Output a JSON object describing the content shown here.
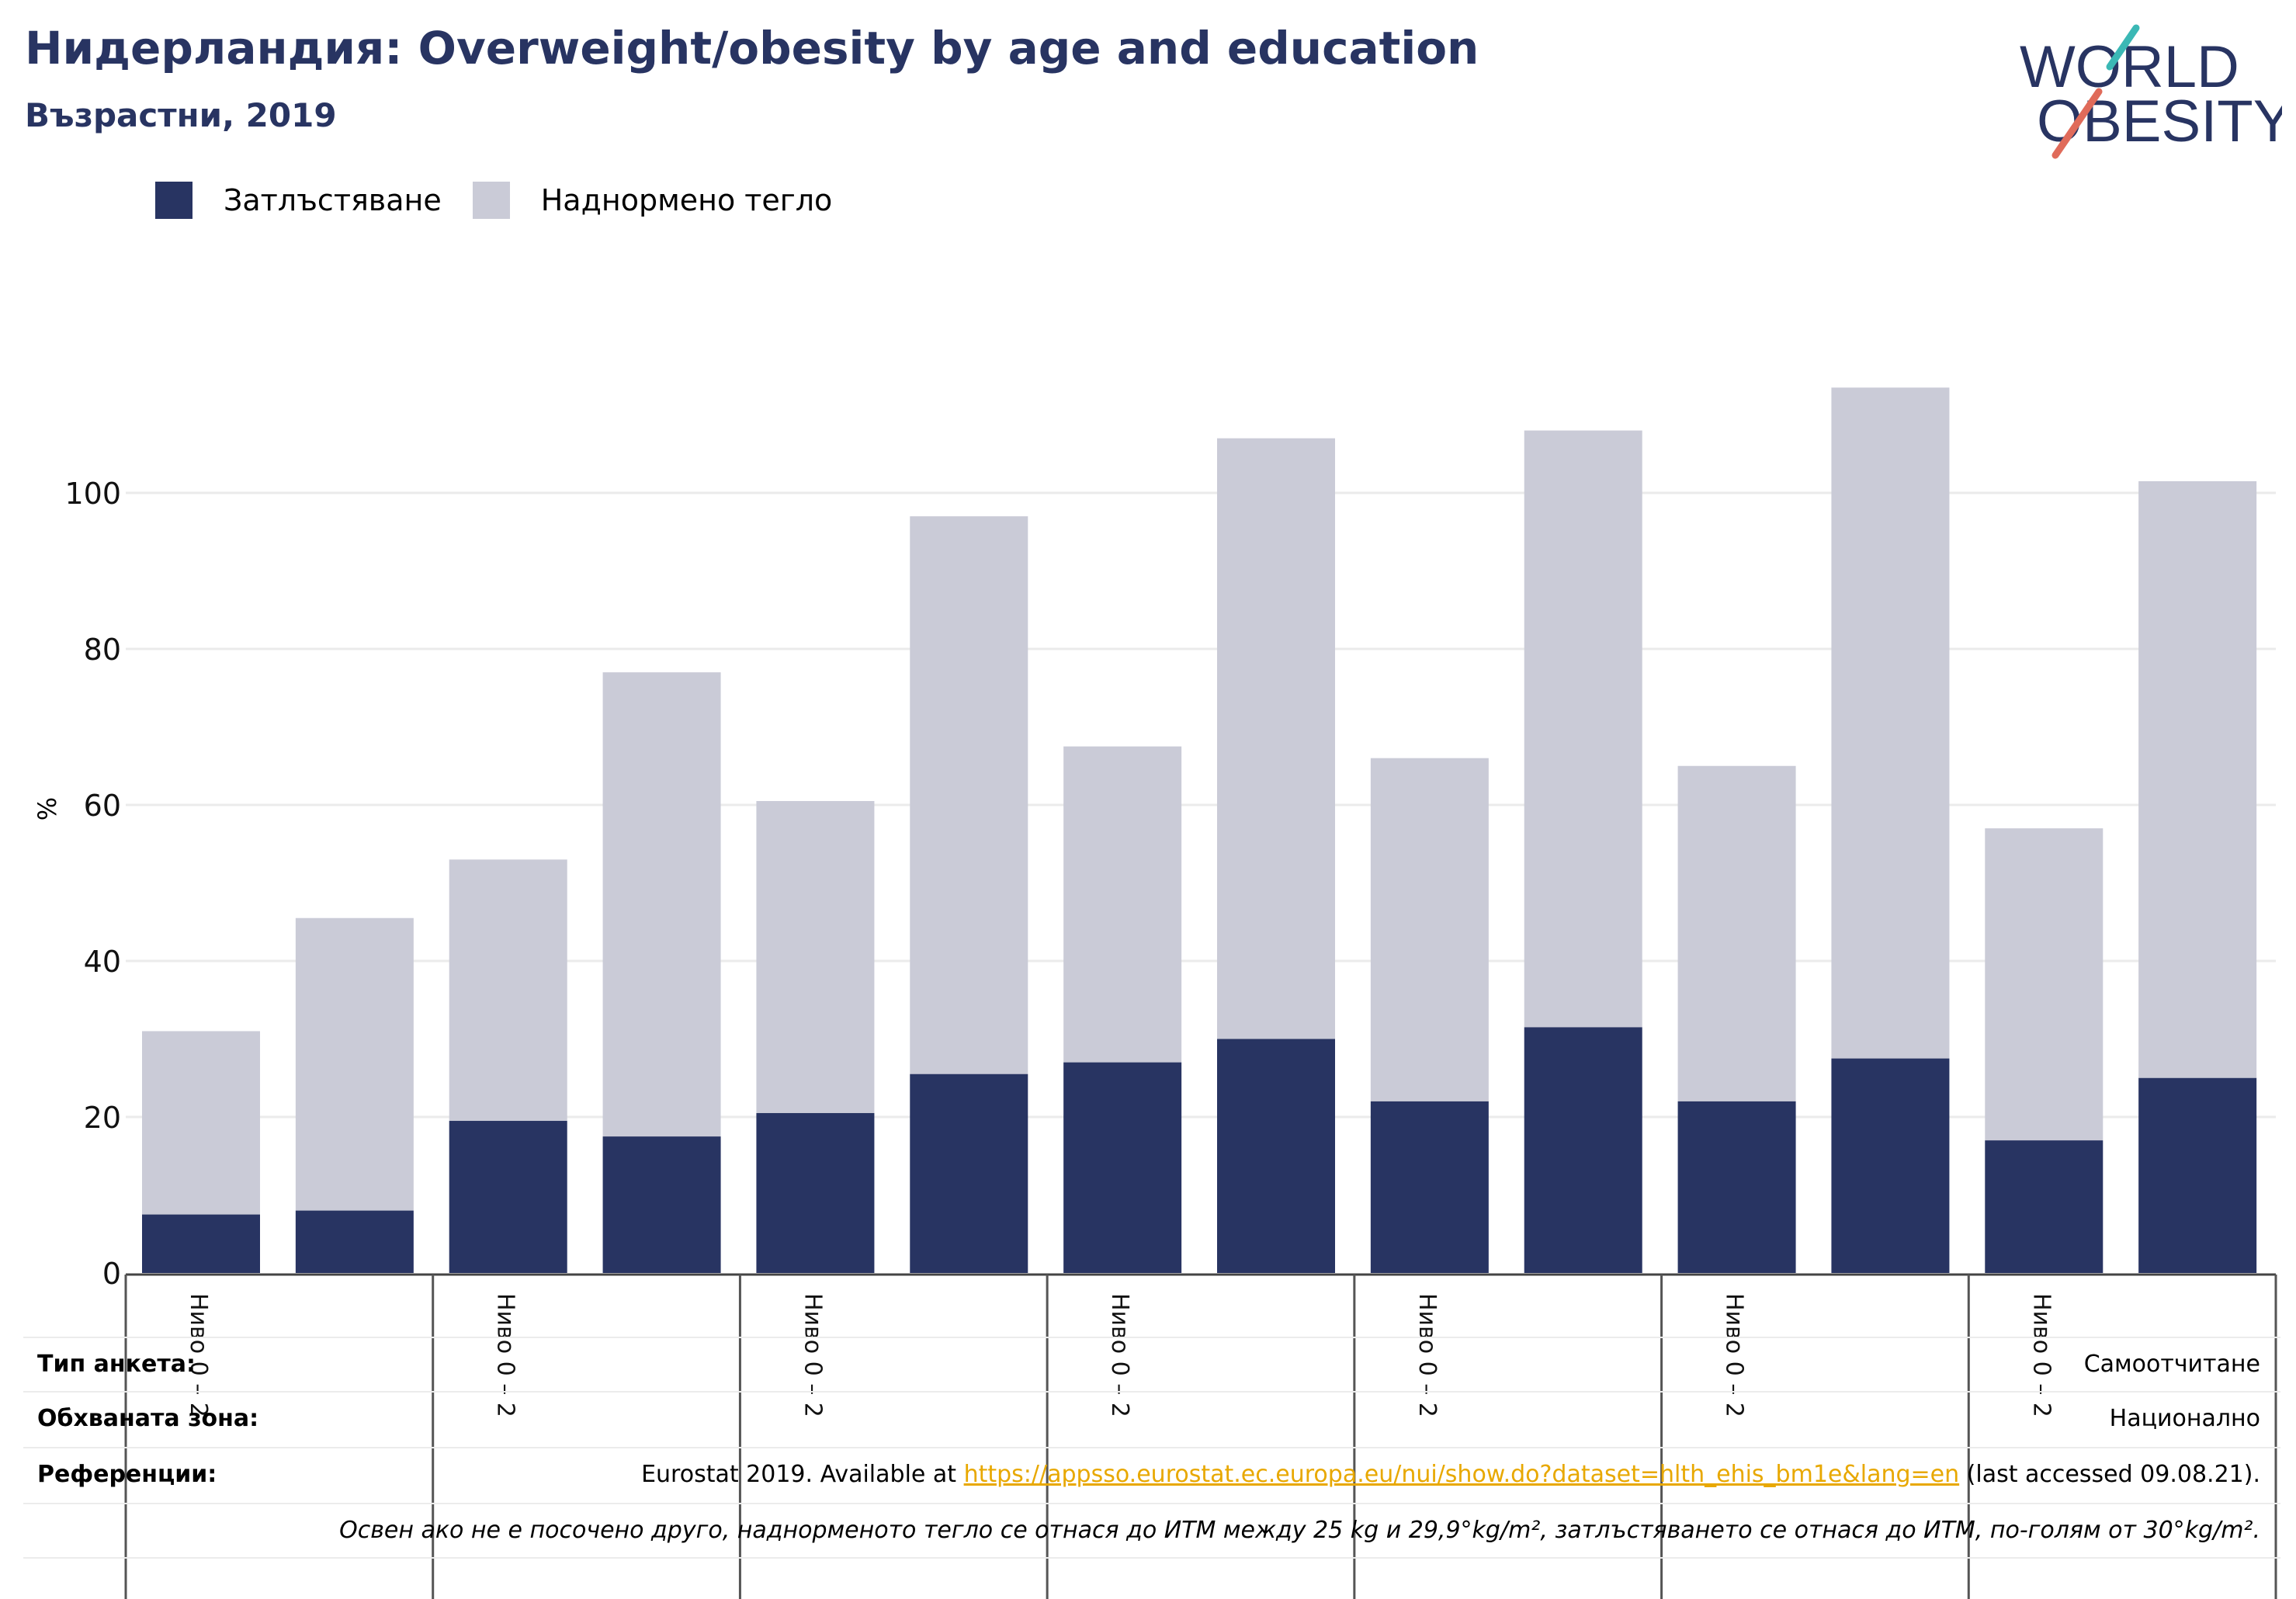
{
  "title": "Нидерландия: Overweight/obesity by age and education",
  "subtitle": "Възрастни, 2019",
  "logo": {
    "line1": "WORLD",
    "line2": "OBESITY",
    "colors": {
      "text": "#283462",
      "slash_top": "#3bb8b5",
      "slash_bottom": "#e06b5a"
    }
  },
  "legend": {
    "obesity": {
      "label": "Затлъстяване",
      "color": "#283462"
    },
    "overweight": {
      "label": "Наднормено тегло",
      "color": "#cacbd7"
    }
  },
  "chart_data": {
    "type": "bar",
    "stacked": true,
    "ylabel": "%",
    "ylim": [
      0,
      115
    ],
    "yticks": [
      0,
      20,
      40,
      60,
      80,
      100
    ],
    "grid": true,
    "legend_position": "top-left",
    "group_labels": [
      "Ниво 0 – 2",
      "Ниво 0 – 2",
      "Ниво 0 – 2",
      "Ниво 0 – 2",
      "Ниво 0 – 2",
      "Ниво 0 – 2",
      "Ниво 0 – 2"
    ],
    "series": [
      {
        "name": "Затлъстяване",
        "color": "#283462",
        "values": [
          7.5,
          8,
          19.5,
          17.5,
          20.5,
          25.5,
          27,
          30,
          22,
          31.5,
          22,
          27.5,
          17,
          25
        ]
      },
      {
        "name": "Наднормено тегло",
        "color": "#cacbd7",
        "values": [
          23.5,
          37.5,
          33.5,
          59.5,
          40,
          71.5,
          40.5,
          77,
          44,
          76.5,
          43,
          86,
          40,
          76.5
        ]
      }
    ]
  },
  "info": {
    "survey_type": {
      "label": "Тип анкета:",
      "value": "Самоотчитане"
    },
    "coverage": {
      "label": "Обхваната зона:",
      "value": "Национално"
    },
    "references": {
      "label": "Референции:",
      "prefix": "Eurostat 2019. Available at ",
      "link": "https://appsso.eurostat.ec.europa.eu/nui/show.do?dataset=hlth_ehis_bm1e&lang=en",
      "suffix": " (last accessed 09.08.21)."
    },
    "note": "Освен ако не е посочено друго, наднорменото тегло се отнася до ИТМ между 25 kg и 29,9°kg/m², затлъстяването се отнася до ИТМ, по-голям от 30°kg/m²."
  }
}
